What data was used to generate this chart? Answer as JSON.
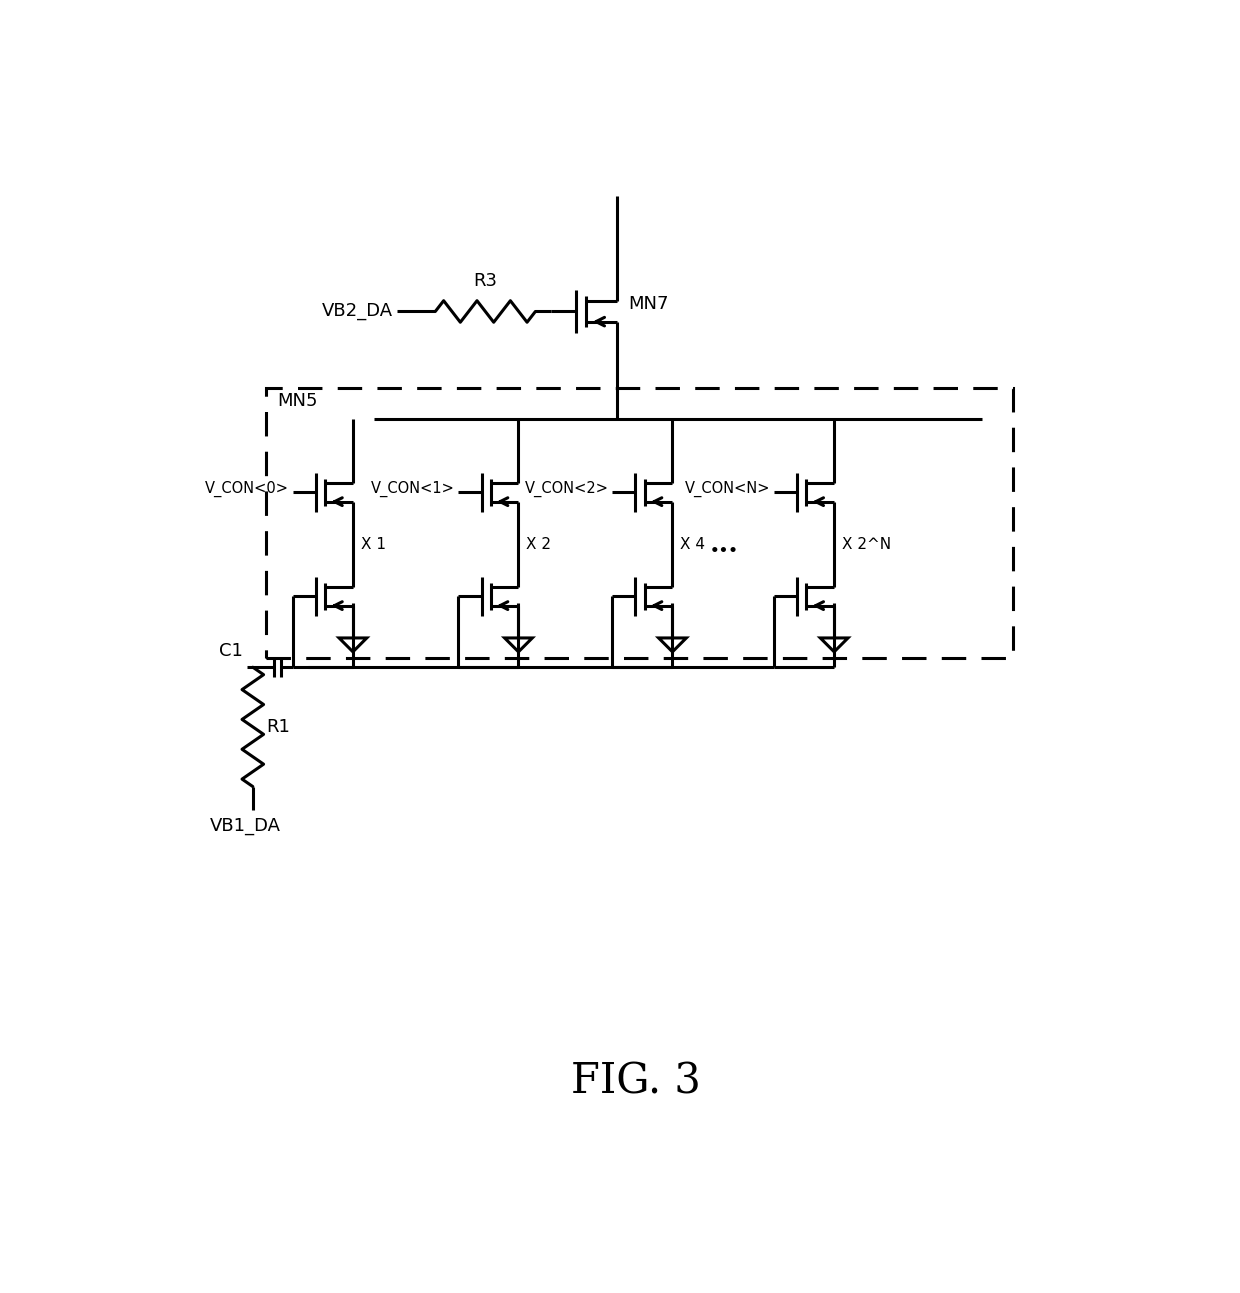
{
  "fig_width": 12.4,
  "fig_height": 12.93,
  "dpi": 100,
  "bg_color": "#ffffff",
  "line_color": "#000000",
  "line_width": 2.2,
  "fig_label": "FIG. 3",
  "fig_label_fontsize": 30,
  "col_labels": [
    "V_CON<0>",
    "V_CON<1>",
    "V_CON<2>",
    "V_CON<N>"
  ],
  "size_labels": [
    "X 1",
    "X 2",
    "X 4",
    "X 2^N"
  ],
  "vb2_label": "VB2_DA",
  "r3_label": "R3",
  "mn7_label": "MN7",
  "mn5_label": "MN5",
  "c1_label": "C1",
  "r1_label": "R1",
  "vb1_label": "VB1_DA",
  "dots_label": "..."
}
